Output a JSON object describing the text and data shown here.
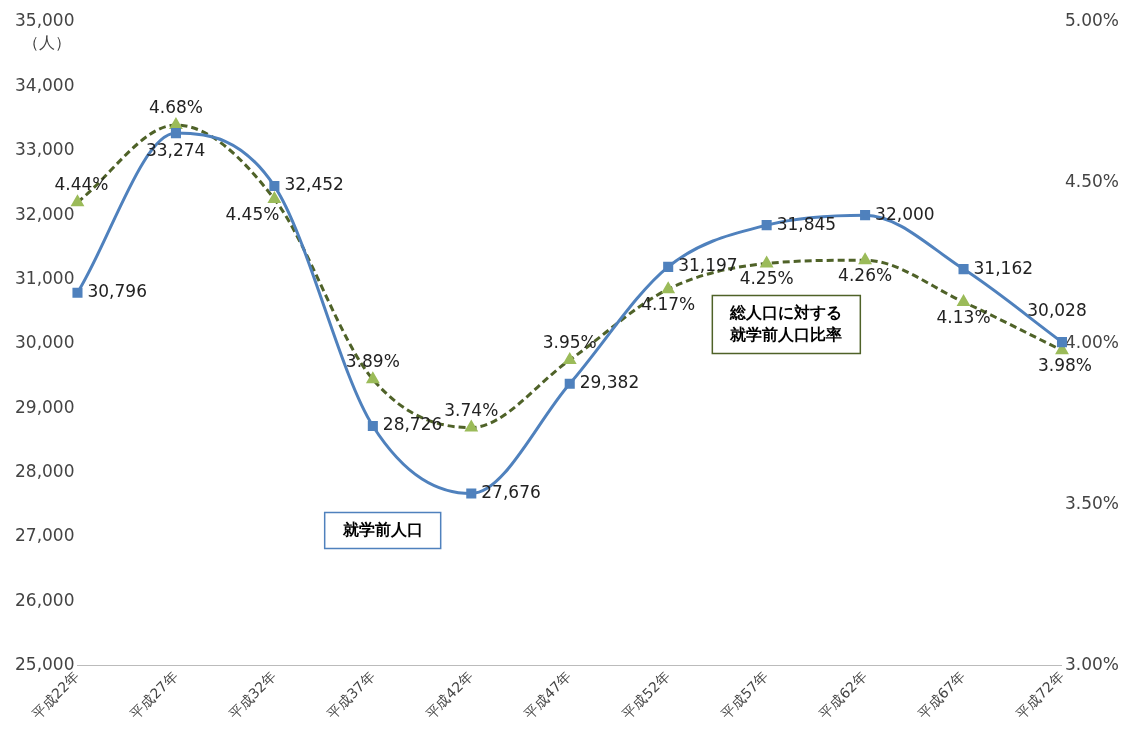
{
  "chart_data": {
    "type": "line",
    "ylabel": "（人）",
    "categories": [
      "平成22年",
      "平成27年",
      "平成32年",
      "平成37年",
      "平成42年",
      "平成47年",
      "平成52年",
      "平成57年",
      "平成62年",
      "平成67年",
      "平成72年"
    ],
    "series": [
      {
        "name": "就学前人口",
        "color": "#4f81bd",
        "marker": "square",
        "line_style": "solid",
        "values": [
          30796,
          33274,
          32452,
          28726,
          27676,
          29382,
          31197,
          31845,
          32000,
          31162,
          30028
        ],
        "value_labels": [
          "30,796",
          "33,274",
          "32,452",
          "28,726",
          "27,676",
          "29,382",
          "31,197",
          "31,845",
          "32,000",
          "31,162",
          "30,028"
        ]
      },
      {
        "name": "総人口に対する就学前人口比率",
        "color": "#4f6228",
        "marker": "triangle",
        "line_style": "dashed",
        "axis": "y2",
        "values": [
          4.44,
          4.68,
          4.45,
          3.89,
          3.74,
          3.95,
          4.17,
          4.25,
          4.26,
          4.13,
          3.98
        ],
        "value_labels": [
          "4.44%",
          "4.68%",
          "4.45%",
          "3.89%",
          "3.74%",
          "3.95%",
          "4.17%",
          "4.25%",
          "4.26%",
          "4.13%",
          "3.98%"
        ]
      }
    ],
    "ylim": [
      25000,
      35000
    ],
    "yticks": [
      {
        "value": 25000,
        "label": "25,000"
      },
      {
        "value": 26000,
        "label": "26,000"
      },
      {
        "value": 27000,
        "label": "27,000"
      },
      {
        "value": 28000,
        "label": "28,000"
      },
      {
        "value": 29000,
        "label": "29,000"
      },
      {
        "value": 30000,
        "label": "30,000"
      },
      {
        "value": 31000,
        "label": "31,000"
      },
      {
        "value": 32000,
        "label": "32,000"
      },
      {
        "value": 33000,
        "label": "33,000"
      },
      {
        "value": 34000,
        "label": "34,000"
      },
      {
        "value": 35000,
        "label": "35,000"
      }
    ],
    "y2lim": [
      3,
      5
    ],
    "y2ticks": [
      {
        "value": 3,
        "label": "3.00%"
      },
      {
        "value": 3.5,
        "label": "3.50%"
      },
      {
        "value": 4,
        "label": "4.00%"
      },
      {
        "value": 4.5,
        "label": "4.50%"
      },
      {
        "value": 5,
        "label": "5.00%"
      }
    ],
    "grid": false,
    "legend": false
  }
}
